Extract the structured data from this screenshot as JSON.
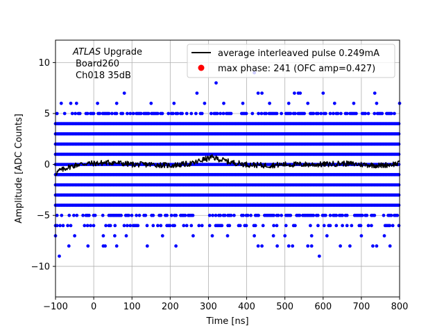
{
  "chart_data": {
    "type": "scatter",
    "xlabel": "Time [ns]",
    "ylabel": "Amplitude [ADC Counts]",
    "xlim": [
      -100,
      800
    ],
    "ylim": [
      -13,
      12.2
    ],
    "xticks": [
      -100,
      0,
      100,
      200,
      300,
      400,
      500,
      600,
      700,
      800
    ],
    "xtick_labels": [
      "−100",
      "0",
      "100",
      "200",
      "300",
      "400",
      "500",
      "600",
      "700",
      "800"
    ],
    "yticks": [
      -10,
      -5,
      0,
      5,
      10
    ],
    "ytick_labels": [
      "−10",
      "−5",
      "0",
      "5",
      "10"
    ],
    "grid": true,
    "legend_position": "top-right",
    "annotation": {
      "line1_italic": "ATLAS",
      "line1_rest": " Upgrade",
      "line2": "Board260",
      "line3": "Ch018 35dB"
    },
    "series": [
      {
        "name": "average interleaved pulse 0.249mA",
        "kind": "line",
        "color": "#000000",
        "x": [
          -100,
          -90,
          -80,
          -70,
          -60,
          -50,
          -40,
          -20,
          0,
          50,
          100,
          150,
          200,
          230,
          260,
          280,
          300,
          310,
          320,
          330,
          340,
          360,
          380,
          400,
          450,
          500,
          550,
          600,
          650,
          700,
          750,
          800
        ],
        "y": [
          -0.9,
          -0.6,
          -0.5,
          -0.3,
          -0.2,
          -0.1,
          0.0,
          0.1,
          0.1,
          0.2,
          0.0,
          0.0,
          -0.1,
          0.0,
          0.1,
          0.4,
          0.6,
          0.7,
          0.6,
          0.5,
          0.4,
          0.2,
          0.1,
          0.0,
          -0.1,
          0.0,
          0.0,
          0.0,
          0.1,
          0.0,
          -0.1,
          0.1
        ]
      },
      {
        "name": "max phase: 241 (OFC amp=0.427)",
        "kind": "points",
        "color": "#ff0000"
      },
      {
        "name": "",
        "kind": "scatter-bands",
        "color": "#0000ff",
        "x_range": [
          -100,
          800
        ],
        "levels": [
          {
            "y": 4,
            "density": 1.0
          },
          {
            "y": 3,
            "density": 1.0
          },
          {
            "y": 2,
            "density": 1.0
          },
          {
            "y": 1,
            "density": 1.0
          },
          {
            "y": 0,
            "density": 1.0
          },
          {
            "y": -1,
            "density": 1.0
          },
          {
            "y": -2,
            "density": 1.0
          },
          {
            "y": -3,
            "density": 1.0
          },
          {
            "y": -4,
            "density": 1.0
          },
          {
            "y": 5,
            "density": 0.55
          },
          {
            "y": -5,
            "density": 0.55
          },
          {
            "y": -6,
            "density": 0.35
          }
        ],
        "sparse_points": [
          {
            "x": 80,
            "y": 7
          },
          {
            "x": 270,
            "y": 7
          },
          {
            "x": 320,
            "y": 8
          },
          {
            "x": 420,
            "y": 9
          },
          {
            "x": 430,
            "y": 7
          },
          {
            "x": 440,
            "y": 7
          },
          {
            "x": 525,
            "y": 7
          },
          {
            "x": 535,
            "y": 7
          },
          {
            "x": 540,
            "y": 7
          },
          {
            "x": 600,
            "y": 7
          },
          {
            "x": 735,
            "y": 7
          },
          {
            "x": 800,
            "y": 6
          },
          {
            "x": -85,
            "y": 6
          },
          {
            "x": -60,
            "y": 6
          },
          {
            "x": -45,
            "y": 6
          },
          {
            "x": 10,
            "y": 6
          },
          {
            "x": 60,
            "y": 6
          },
          {
            "x": 150,
            "y": 6
          },
          {
            "x": 210,
            "y": 6
          },
          {
            "x": 290,
            "y": 6
          },
          {
            "x": 340,
            "y": 6
          },
          {
            "x": 390,
            "y": 6
          },
          {
            "x": 460,
            "y": 6
          },
          {
            "x": 510,
            "y": 6
          },
          {
            "x": 560,
            "y": 6
          },
          {
            "x": 630,
            "y": 6
          },
          {
            "x": 680,
            "y": 6
          },
          {
            "x": 740,
            "y": 6
          },
          {
            "x": -100,
            "y": -7
          },
          {
            "x": -50,
            "y": -7
          },
          {
            "x": 25,
            "y": -7
          },
          {
            "x": 55,
            "y": -7
          },
          {
            "x": 85,
            "y": -7
          },
          {
            "x": 180,
            "y": -7
          },
          {
            "x": 260,
            "y": -7
          },
          {
            "x": 310,
            "y": -7
          },
          {
            "x": 350,
            "y": -7
          },
          {
            "x": 420,
            "y": -7
          },
          {
            "x": 470,
            "y": -7
          },
          {
            "x": 500,
            "y": -7
          },
          {
            "x": 570,
            "y": -7
          },
          {
            "x": 610,
            "y": -7
          },
          {
            "x": 700,
            "y": -7
          },
          {
            "x": 760,
            "y": -7
          },
          {
            "x": -90,
            "y": -9
          },
          {
            "x": 590,
            "y": -9
          },
          {
            "x": -65,
            "y": -8
          },
          {
            "x": -15,
            "y": -8
          },
          {
            "x": 25,
            "y": -8
          },
          {
            "x": 30,
            "y": -8
          },
          {
            "x": 60,
            "y": -8
          },
          {
            "x": 140,
            "y": -8
          },
          {
            "x": 215,
            "y": -8
          },
          {
            "x": 430,
            "y": -8
          },
          {
            "x": 440,
            "y": -8
          },
          {
            "x": 480,
            "y": -8
          },
          {
            "x": 510,
            "y": -8
          },
          {
            "x": 520,
            "y": -8
          },
          {
            "x": 560,
            "y": -8
          },
          {
            "x": 570,
            "y": -8
          },
          {
            "x": 645,
            "y": -8
          },
          {
            "x": 670,
            "y": -8
          },
          {
            "x": 730,
            "y": -8
          },
          {
            "x": 740,
            "y": -8
          },
          {
            "x": 775,
            "y": -8
          }
        ]
      }
    ]
  }
}
